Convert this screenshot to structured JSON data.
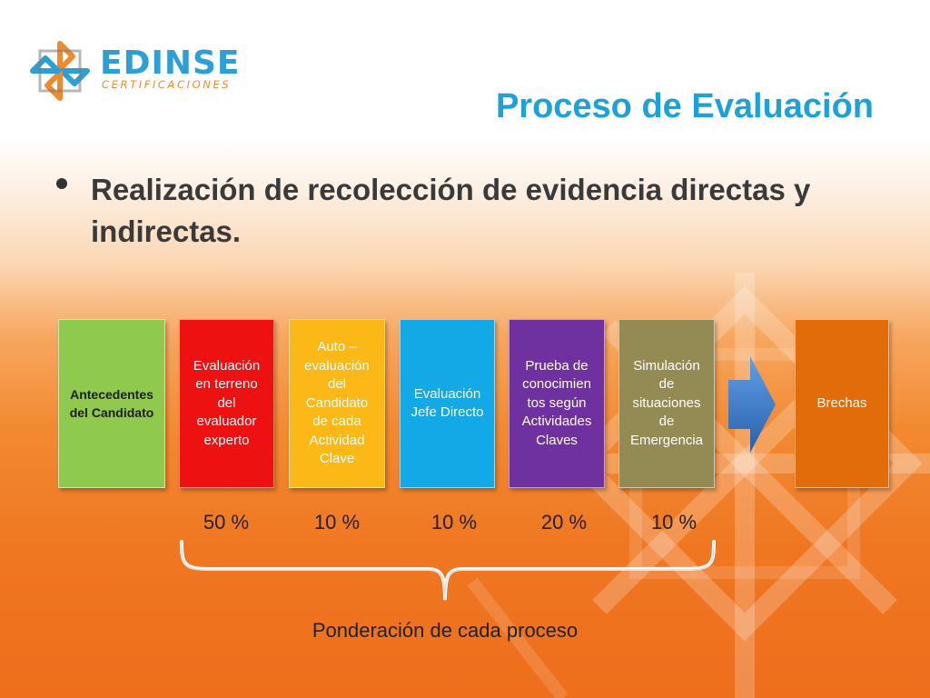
{
  "logo": {
    "name": "EDINSE",
    "subtitle": "CERTIFICACIONES"
  },
  "title": "Proceso de Evaluación",
  "bullet": "Realización de recolección de evidencia directas y indirectas.",
  "process": {
    "steps": [
      {
        "label": "Antecedentes\ndel Candidato",
        "color": "#8fc94e"
      },
      {
        "label": "Evaluación\nen terreno\ndel\nevaluador\nexperto",
        "color": "#ee1111"
      },
      {
        "label": "Auto –\nevaluación\ndel\nCandidato\nde cada\nActividad\nClave",
        "color": "#fbb816"
      },
      {
        "label": "Evaluación\nJefe Directo",
        "color": "#13a9e6"
      },
      {
        "label": "Prueba de\nconocimien\ntos según\nActividades\nClaves",
        "color": "#7031a0"
      },
      {
        "label": "Simulación\nde\nsituaciones\nde\nEmergencia",
        "color": "#948a54"
      }
    ],
    "result": {
      "label": "Brechas",
      "color": "#e36c0a"
    },
    "arrow_color": "#3b7bd1"
  },
  "weights": [
    "50 %",
    "10 %",
    "10 %",
    "20 %",
    "10 %"
  ],
  "weights_caption": "Ponderación de cada proceso"
}
